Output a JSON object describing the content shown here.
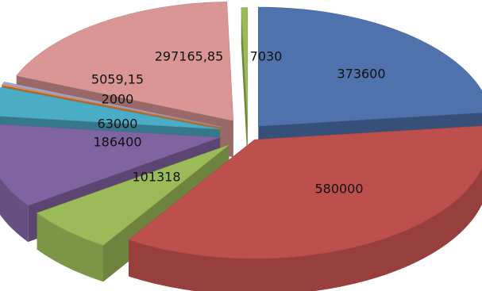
{
  "chart_data": {
    "type": "pie",
    "style": "3d-exploded",
    "slices": [
      {
        "label": "373600",
        "value": 373600,
        "color": "#4F72AD"
      },
      {
        "label": "580000",
        "value": 580000,
        "color": "#BD4F4C"
      },
      {
        "label": "101318",
        "value": 101318,
        "color": "#9BBB59"
      },
      {
        "label": "186400",
        "value": 186400,
        "color": "#8064A2"
      },
      {
        "label": "63000",
        "value": 63000,
        "color": "#4BACC6"
      },
      {
        "label": "2000",
        "value": 2000,
        "color": "#F79646"
      },
      {
        "label": "5059,15",
        "value": 5059.15,
        "color": "#A5A5C8"
      },
      {
        "label": "297165,85",
        "value": 297165.85,
        "color": "#D99694"
      },
      {
        "label": "7030",
        "value": 7030,
        "color": "#9BBB59"
      }
    ]
  }
}
